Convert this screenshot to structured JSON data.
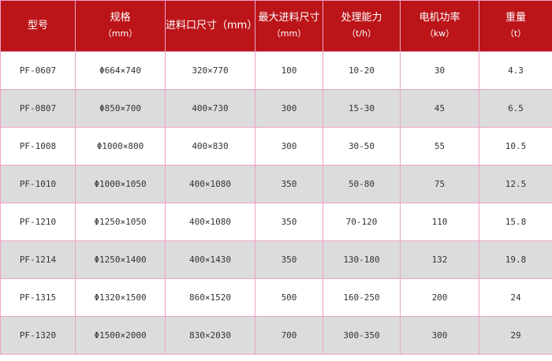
{
  "header": [
    {
      "label": "型号",
      "unit": ""
    },
    {
      "label": "规格",
      "unit": "（mm）"
    },
    {
      "label": "进料口尺寸（mm）",
      "unit": ""
    },
    {
      "label": "最大进料尺寸",
      "unit": "（mm）"
    },
    {
      "label": "处理能力",
      "unit": "（t/h）"
    },
    {
      "label": "电机功率",
      "unit": "（kw）"
    },
    {
      "label": "重量",
      "unit": "（t）"
    }
  ],
  "rows": [
    [
      "PF-0607",
      "Φ664×740",
      "320×770",
      "100",
      "10-20",
      "30",
      "4.3"
    ],
    [
      "PF-0807",
      "Φ850×700",
      "400×730",
      "300",
      "15-30",
      "45",
      "6.5"
    ],
    [
      "PF-1008",
      "Φ1000×800",
      "400×830",
      "300",
      "30-50",
      "55",
      "10.5"
    ],
    [
      "PF-1010",
      "Φ1000×1050",
      "400×1080",
      "350",
      "50-80",
      "75",
      "12.5"
    ],
    [
      "PF-1210",
      "Φ1250×1050",
      "400×1080",
      "350",
      "70-120",
      "110",
      "15.8"
    ],
    [
      "PF-1214",
      "Φ1250×1400",
      "400×1430",
      "350",
      "130-180",
      "132",
      "19.8"
    ],
    [
      "PF-1315",
      "Φ1320×1500",
      "860×1520",
      "500",
      "160-250",
      "200",
      "24"
    ],
    [
      "PF-1320",
      "Φ1500×2000",
      "830×2030",
      "700",
      "300-350",
      "300",
      "29"
    ]
  ],
  "colors": {
    "header_bg": "#bb1519",
    "border": "#eca4c8",
    "alt_row": "#dcdcdc"
  }
}
